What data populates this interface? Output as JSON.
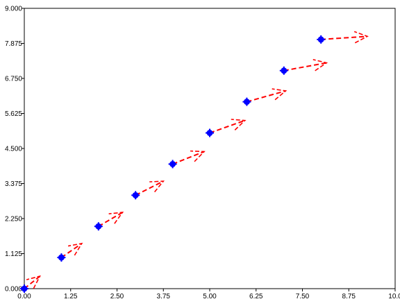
{
  "chart_data": {
    "type": "scatter",
    "title": "",
    "xlabel": "",
    "ylabel": "",
    "xlim": [
      0,
      10
    ],
    "ylim": [
      0,
      9
    ],
    "grid": false,
    "legend": "none",
    "x_ticks": [
      "0.00",
      "1.25",
      "2.50",
      "3.75",
      "5.00",
      "6.25",
      "7.50",
      "8.75",
      "10.0"
    ],
    "y_ticks": [
      "0.000",
      "1.125",
      "2.250",
      "3.375",
      "4.500",
      "5.625",
      "6.750",
      "7.875",
      "9.000"
    ],
    "points": [
      {
        "x": 0,
        "y": 0
      },
      {
        "x": 1,
        "y": 1
      },
      {
        "x": 2,
        "y": 2
      },
      {
        "x": 3,
        "y": 3
      },
      {
        "x": 4,
        "y": 4
      },
      {
        "x": 5,
        "y": 5
      },
      {
        "x": 6,
        "y": 6
      },
      {
        "x": 7,
        "y": 7
      },
      {
        "x": 8,
        "y": 8
      }
    ],
    "arrows": [
      {
        "x0": 0,
        "y0": 0,
        "x1": 0.42,
        "y1": 0.4
      },
      {
        "x0": 1,
        "y0": 1,
        "x1": 1.55,
        "y1": 1.45
      },
      {
        "x0": 2,
        "y0": 2,
        "x1": 2.65,
        "y1": 2.45
      },
      {
        "x0": 3,
        "y0": 3,
        "x1": 3.75,
        "y1": 3.45
      },
      {
        "x0": 4,
        "y0": 4,
        "x1": 4.85,
        "y1": 4.4
      },
      {
        "x0": 5,
        "y0": 5,
        "x1": 5.95,
        "y1": 5.4
      },
      {
        "x0": 6,
        "y0": 6,
        "x1": 7.05,
        "y1": 6.35
      },
      {
        "x0": 7,
        "y0": 7,
        "x1": 8.15,
        "y1": 7.25
      },
      {
        "x0": 8,
        "y0": 8,
        "x1": 9.25,
        "y1": 8.1
      }
    ],
    "marker_color": "#0000ff",
    "arrow_color": "#ff0000",
    "axis_color": "#000000"
  }
}
